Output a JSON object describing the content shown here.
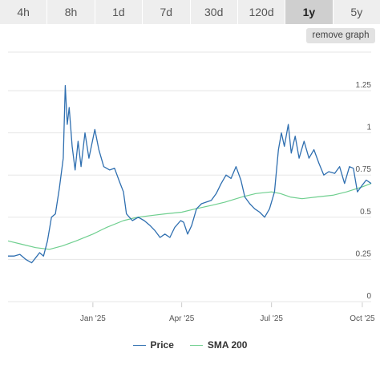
{
  "range_tabs": [
    {
      "label": "4h",
      "active": false
    },
    {
      "label": "8h",
      "active": false
    },
    {
      "label": "1d",
      "active": false
    },
    {
      "label": "7d",
      "active": false
    },
    {
      "label": "30d",
      "active": false
    },
    {
      "label": "120d",
      "active": false
    },
    {
      "label": "1y",
      "active": true
    },
    {
      "label": "5y",
      "active": false
    }
  ],
  "remove_graph_label": "remove graph",
  "chart_data": {
    "type": "line",
    "x_range": [
      "2024-10-07",
      "2025-10-10"
    ],
    "ylim": [
      0,
      1.25
    ],
    "y_ticks": [
      "0",
      "0.25",
      "0.5",
      "0.75",
      "1",
      "1.25"
    ],
    "y_tick_values": [
      0,
      0.25,
      0.5,
      0.75,
      1,
      1.25
    ],
    "x_tick_labels": [
      "Jan '25",
      "Apr '25",
      "Jul '25",
      "Oct '25"
    ],
    "x_tick_dates": [
      "2025-01-01",
      "2025-04-01",
      "2025-07-01",
      "2025-10-01"
    ],
    "grid": true,
    "legend_position": "bottom",
    "series": [
      {
        "name": "Price",
        "color": "#2f6fb0",
        "points": [
          [
            "2024-10-07",
            0.27
          ],
          [
            "2024-10-13",
            0.27
          ],
          [
            "2024-10-19",
            0.28
          ],
          [
            "2024-10-25",
            0.25
          ],
          [
            "2024-10-31",
            0.23
          ],
          [
            "2024-11-04",
            0.26
          ],
          [
            "2024-11-08",
            0.29
          ],
          [
            "2024-11-12",
            0.27
          ],
          [
            "2024-11-16",
            0.36
          ],
          [
            "2024-11-20",
            0.5
          ],
          [
            "2024-11-24",
            0.52
          ],
          [
            "2024-11-28",
            0.67
          ],
          [
            "2024-12-02",
            0.85
          ],
          [
            "2024-12-04",
            1.28
          ],
          [
            "2024-12-06",
            1.05
          ],
          [
            "2024-12-08",
            1.15
          ],
          [
            "2024-12-11",
            0.92
          ],
          [
            "2024-12-14",
            0.78
          ],
          [
            "2024-12-17",
            0.95
          ],
          [
            "2024-12-20",
            0.8
          ],
          [
            "2024-12-24",
            1.0
          ],
          [
            "2024-12-28",
            0.85
          ],
          [
            "2025-01-03",
            1.02
          ],
          [
            "2025-01-07",
            0.9
          ],
          [
            "2025-01-12",
            0.8
          ],
          [
            "2025-01-18",
            0.78
          ],
          [
            "2025-01-23",
            0.79
          ],
          [
            "2025-01-28",
            0.71
          ],
          [
            "2025-02-01",
            0.65
          ],
          [
            "2025-02-04",
            0.52
          ],
          [
            "2025-02-10",
            0.48
          ],
          [
            "2025-02-16",
            0.5
          ],
          [
            "2025-02-22",
            0.48
          ],
          [
            "2025-02-28",
            0.45
          ],
          [
            "2025-03-05",
            0.42
          ],
          [
            "2025-03-10",
            0.38
          ],
          [
            "2025-03-15",
            0.4
          ],
          [
            "2025-03-20",
            0.38
          ],
          [
            "2025-03-25",
            0.44
          ],
          [
            "2025-03-31",
            0.48
          ],
          [
            "2025-04-03",
            0.47
          ],
          [
            "2025-04-07",
            0.4
          ],
          [
            "2025-04-11",
            0.45
          ],
          [
            "2025-04-16",
            0.55
          ],
          [
            "2025-04-21",
            0.58
          ],
          [
            "2025-04-26",
            0.59
          ],
          [
            "2025-05-01",
            0.6
          ],
          [
            "2025-05-06",
            0.64
          ],
          [
            "2025-05-11",
            0.7
          ],
          [
            "2025-05-16",
            0.75
          ],
          [
            "2025-05-21",
            0.73
          ],
          [
            "2025-05-26",
            0.8
          ],
          [
            "2025-05-31",
            0.72
          ],
          [
            "2025-06-04",
            0.62
          ],
          [
            "2025-06-09",
            0.58
          ],
          [
            "2025-06-14",
            0.55
          ],
          [
            "2025-06-19",
            0.53
          ],
          [
            "2025-06-24",
            0.5
          ],
          [
            "2025-06-29",
            0.55
          ],
          [
            "2025-07-04",
            0.65
          ],
          [
            "2025-07-08",
            0.9
          ],
          [
            "2025-07-11",
            1.0
          ],
          [
            "2025-07-14",
            0.92
          ],
          [
            "2025-07-18",
            1.05
          ],
          [
            "2025-07-21",
            0.88
          ],
          [
            "2025-07-25",
            0.98
          ],
          [
            "2025-07-29",
            0.85
          ],
          [
            "2025-08-03",
            0.95
          ],
          [
            "2025-08-08",
            0.85
          ],
          [
            "2025-08-13",
            0.9
          ],
          [
            "2025-08-18",
            0.82
          ],
          [
            "2025-08-23",
            0.75
          ],
          [
            "2025-08-28",
            0.77
          ],
          [
            "2025-09-03",
            0.76
          ],
          [
            "2025-09-08",
            0.8
          ],
          [
            "2025-09-13",
            0.7
          ],
          [
            "2025-09-18",
            0.8
          ],
          [
            "2025-09-22",
            0.79
          ],
          [
            "2025-09-26",
            0.65
          ],
          [
            "2025-10-01",
            0.69
          ],
          [
            "2025-10-05",
            0.72
          ],
          [
            "2025-10-10",
            0.7
          ]
        ]
      },
      {
        "name": "SMA 200",
        "color": "#6fcf8f",
        "points": [
          [
            "2024-10-07",
            0.36
          ],
          [
            "2024-10-21",
            0.34
          ],
          [
            "2024-11-04",
            0.32
          ],
          [
            "2024-11-18",
            0.31
          ],
          [
            "2024-12-01",
            0.33
          ],
          [
            "2024-12-15",
            0.36
          ],
          [
            "2025-01-01",
            0.4
          ],
          [
            "2025-01-15",
            0.44
          ],
          [
            "2025-02-01",
            0.48
          ],
          [
            "2025-02-15",
            0.5
          ],
          [
            "2025-03-01",
            0.51
          ],
          [
            "2025-03-15",
            0.52
          ],
          [
            "2025-04-01",
            0.53
          ],
          [
            "2025-04-15",
            0.55
          ],
          [
            "2025-05-01",
            0.57
          ],
          [
            "2025-05-15",
            0.59
          ],
          [
            "2025-06-01",
            0.62
          ],
          [
            "2025-06-15",
            0.64
          ],
          [
            "2025-07-01",
            0.65
          ],
          [
            "2025-07-10",
            0.64
          ],
          [
            "2025-07-20",
            0.62
          ],
          [
            "2025-08-01",
            0.61
          ],
          [
            "2025-08-15",
            0.62
          ],
          [
            "2025-09-01",
            0.63
          ],
          [
            "2025-09-15",
            0.65
          ],
          [
            "2025-10-01",
            0.68
          ],
          [
            "2025-10-10",
            0.7
          ]
        ]
      }
    ]
  }
}
